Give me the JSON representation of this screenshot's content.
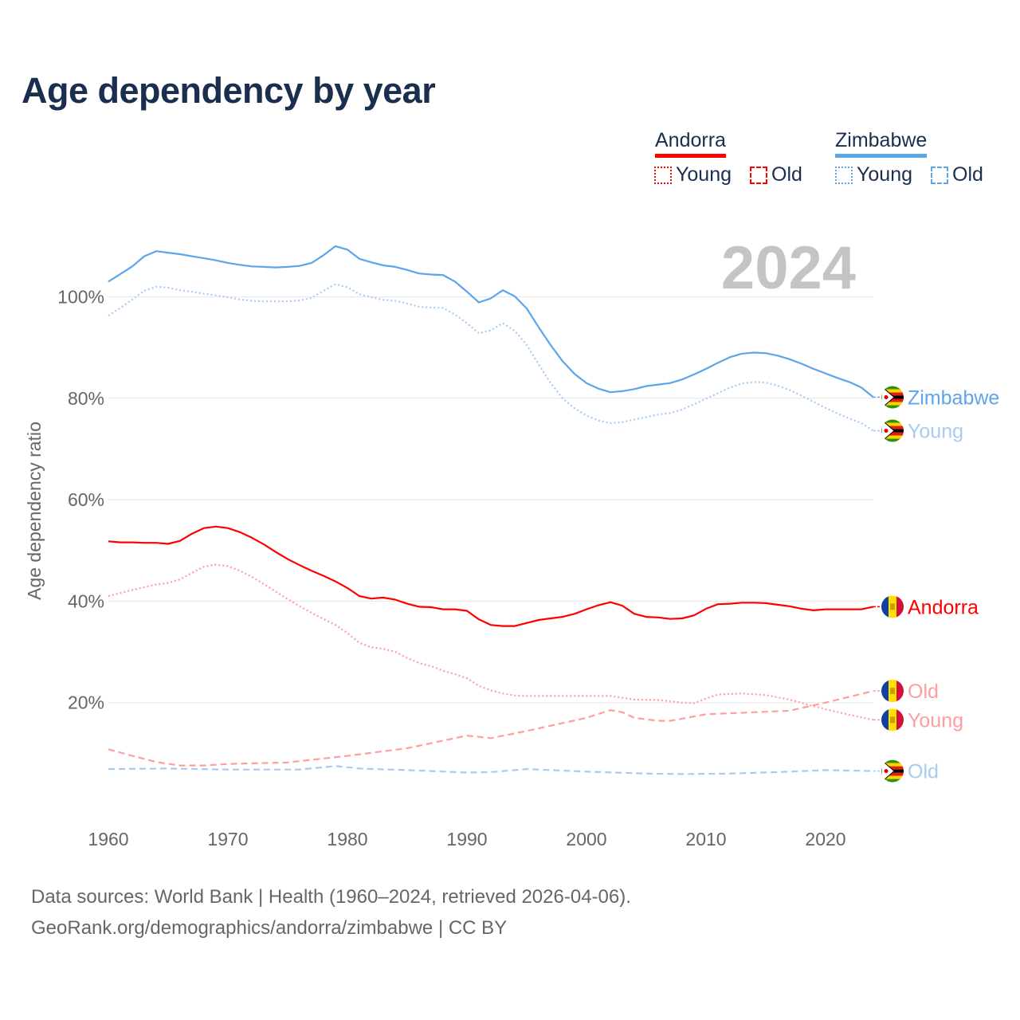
{
  "title": "Age dependency by year",
  "legend": {
    "countries": [
      {
        "name": "Andorra",
        "color": "#ff0000",
        "young_label": "Young",
        "old_label": "Old"
      },
      {
        "name": "Zimbabwe",
        "color": "#5da5ea",
        "young_label": "Young",
        "old_label": "Old"
      }
    ]
  },
  "footer": {
    "line1": "Data sources: World Bank | Health (1960–2024, retrieved 2026-04-06).",
    "line2": "GeoRank.org/demographics/andorra/zimbabwe | CC BY"
  },
  "chart_data": {
    "type": "line",
    "title": "Age dependency by year",
    "xlabel": "",
    "ylabel": "Age dependency ratio",
    "year_annotation": "2024",
    "xlim": [
      1960,
      2024
    ],
    "ylim": [
      0,
      110
    ],
    "xticks": [
      "1960",
      "1970",
      "1980",
      "1990",
      "2000",
      "2010",
      "2020"
    ],
    "yticks": [
      {
        "v": 20,
        "label": "20%"
      },
      {
        "v": 40,
        "label": "40%"
      },
      {
        "v": 60,
        "label": "60%"
      },
      {
        "v": 80,
        "label": "80%"
      },
      {
        "v": 100,
        "label": "100%"
      }
    ],
    "grid": true,
    "series": [
      {
        "name": "Zimbabwe",
        "label": "Zimbabwe",
        "country": "Zimbabwe",
        "kind": "total",
        "color": "#5da5ea",
        "label_color": "#5da5ea",
        "dash": "",
        "start": 1960,
        "values": [
          103,
          104.5,
          106,
          108,
          109,
          108.7,
          108.4,
          108,
          107.6,
          107.2,
          106.7,
          106.3,
          106,
          105.9,
          105.8,
          105.9,
          106.1,
          106.7,
          108.2,
          110,
          109.3,
          107.5,
          106.8,
          106.2,
          105.9,
          105.3,
          104.6,
          104.4,
          104.3,
          103,
          101,
          98.9,
          99.7,
          101.3,
          100.1,
          97.7,
          94,
          90.5,
          87.3,
          84.8,
          83,
          81.9,
          81.2,
          81.4,
          81.8,
          82.4,
          82.7,
          83,
          83.7,
          84.7,
          85.8,
          87,
          88.1,
          88.8,
          89,
          88.9,
          88.4,
          87.7,
          86.8,
          85.8,
          84.9,
          84,
          83.2,
          82.1,
          80.2
        ]
      },
      {
        "name": "Zimbabwe Young",
        "label": "Young",
        "country": "Zimbabwe",
        "kind": "young",
        "color": "#a7cbf2",
        "label_color": "#a7cbf2",
        "dash": "2,3",
        "start": 1960,
        "values": [
          96.3,
          97.8,
          99.5,
          101.2,
          102,
          101.8,
          101.3,
          101,
          100.6,
          100.3,
          99.9,
          99.5,
          99.2,
          99.1,
          99.1,
          99.1,
          99.3,
          99.8,
          101.2,
          102.5,
          101.9,
          100.5,
          99.9,
          99.4,
          99.2,
          98.7,
          98,
          97.9,
          97.8,
          96.5,
          94.8,
          92.8,
          93.4,
          94.8,
          93.3,
          90.5,
          86.7,
          83,
          80,
          78,
          76.6,
          75.6,
          75.1,
          75.3,
          75.8,
          76.3,
          76.8,
          77.1,
          77.8,
          78.8,
          79.9,
          81,
          82.1,
          82.9,
          83.2,
          83.1,
          82.5,
          81.6,
          80.5,
          79.3,
          78.1,
          77,
          76,
          75.1,
          73.6
        ]
      },
      {
        "name": "Andorra",
        "label": "Andorra",
        "country": "Andorra",
        "kind": "total",
        "color": "#ff0000",
        "label_color": "#ff0000",
        "dash": "",
        "start": 1960,
        "values": [
          51.8,
          51.6,
          51.6,
          51.5,
          51.5,
          51.3,
          51.9,
          53.3,
          54.4,
          54.7,
          54.4,
          53.6,
          52.5,
          51.2,
          49.7,
          48.3,
          47.1,
          46,
          45,
          43.9,
          42.6,
          41,
          40.5,
          40.7,
          40.3,
          39.5,
          38.9,
          38.8,
          38.4,
          38.4,
          38.1,
          36.4,
          35.3,
          35.1,
          35.1,
          35.7,
          36.3,
          36.6,
          36.9,
          37.5,
          38.4,
          39.2,
          39.8,
          39.1,
          37.5,
          36.9,
          36.8,
          36.5,
          36.6,
          37.2,
          38.5,
          39.4,
          39.5,
          39.7,
          39.7,
          39.6,
          39.3,
          39,
          38.5,
          38.2,
          38.4,
          38.4,
          38.4,
          38.4,
          38.9
        ]
      },
      {
        "name": "Andorra Old",
        "label": "Old",
        "country": "Andorra",
        "kind": "old",
        "color": "#ff9e9e",
        "label_color": "#ff9e9e",
        "dash": "8,5",
        "points": [
          [
            1960,
            10.8
          ],
          [
            1962,
            9.5
          ],
          [
            1964,
            8.3
          ],
          [
            1966,
            7.6
          ],
          [
            1968,
            7.6
          ],
          [
            1970,
            7.9
          ],
          [
            1975,
            8.2
          ],
          [
            1980,
            9.5
          ],
          [
            1985,
            11
          ],
          [
            1990,
            13.5
          ],
          [
            1992,
            13
          ],
          [
            1995,
            14.4
          ],
          [
            2000,
            17
          ],
          [
            2002,
            18.5
          ],
          [
            2003,
            18.1
          ],
          [
            2004,
            17
          ],
          [
            2006,
            16.4
          ],
          [
            2007,
            16.4
          ],
          [
            2010,
            17.7
          ],
          [
            2015,
            18.2
          ],
          [
            2017,
            18.4
          ],
          [
            2020,
            20
          ],
          [
            2024,
            22.3
          ]
        ]
      },
      {
        "name": "Andorra Young",
        "label": "Young",
        "country": "Andorra",
        "kind": "young",
        "color": "#ff9e9e",
        "label_color": "#ff9e9e",
        "dash": "2,3",
        "points": [
          [
            1960,
            41
          ],
          [
            1962,
            42.2
          ],
          [
            1964,
            43.3
          ],
          [
            1965,
            43.6
          ],
          [
            1966,
            44.3
          ],
          [
            1967,
            45.6
          ],
          [
            1968,
            46.8
          ],
          [
            1969,
            47.2
          ],
          [
            1970,
            46.9
          ],
          [
            1971,
            46
          ],
          [
            1972,
            44.8
          ],
          [
            1973,
            43.4
          ],
          [
            1974,
            41.9
          ],
          [
            1975,
            40.4
          ],
          [
            1976,
            39
          ],
          [
            1977,
            37.7
          ],
          [
            1978,
            36.5
          ],
          [
            1979,
            35.3
          ],
          [
            1980,
            33.7
          ],
          [
            1981,
            31.8
          ],
          [
            1982,
            30.9
          ],
          [
            1983,
            30.6
          ],
          [
            1984,
            30
          ],
          [
            1985,
            28.8
          ],
          [
            1986,
            27.8
          ],
          [
            1987,
            27.2
          ],
          [
            1988,
            26.3
          ],
          [
            1989,
            25.6
          ],
          [
            1990,
            24.8
          ],
          [
            1991,
            23.3
          ],
          [
            1992,
            22.4
          ],
          [
            1993,
            21.8
          ],
          [
            1994,
            21.4
          ],
          [
            1995,
            21.3
          ],
          [
            2000,
            21.3
          ],
          [
            2002,
            21.3
          ],
          [
            2004,
            20.6
          ],
          [
            2006,
            20.5
          ],
          [
            2008,
            20
          ],
          [
            2009,
            19.9
          ],
          [
            2010,
            20.8
          ],
          [
            2011,
            21.6
          ],
          [
            2013,
            21.8
          ],
          [
            2015,
            21.5
          ],
          [
            2017,
            20.6
          ],
          [
            2019,
            19.3
          ],
          [
            2020,
            18.7
          ],
          [
            2022,
            17.6
          ],
          [
            2024,
            16.6
          ]
        ]
      },
      {
        "name": "Zimbabwe Old",
        "label": "Old",
        "country": "Zimbabwe",
        "kind": "old",
        "color": "#a7cbf2",
        "label_color": "#a7cbf2",
        "dash": "8,5",
        "points": [
          [
            1960,
            6.9
          ],
          [
            1965,
            7
          ],
          [
            1970,
            6.8
          ],
          [
            1976,
            6.8
          ],
          [
            1979,
            7.5
          ],
          [
            1981,
            7
          ],
          [
            1985,
            6.7
          ],
          [
            1990,
            6.2
          ],
          [
            1992,
            6.3
          ],
          [
            1995,
            6.9
          ],
          [
            2000,
            6.4
          ],
          [
            2005,
            6
          ],
          [
            2008,
            5.9
          ],
          [
            2012,
            6
          ],
          [
            2016,
            6.3
          ],
          [
            2020,
            6.7
          ],
          [
            2024,
            6.5
          ]
        ]
      }
    ]
  }
}
